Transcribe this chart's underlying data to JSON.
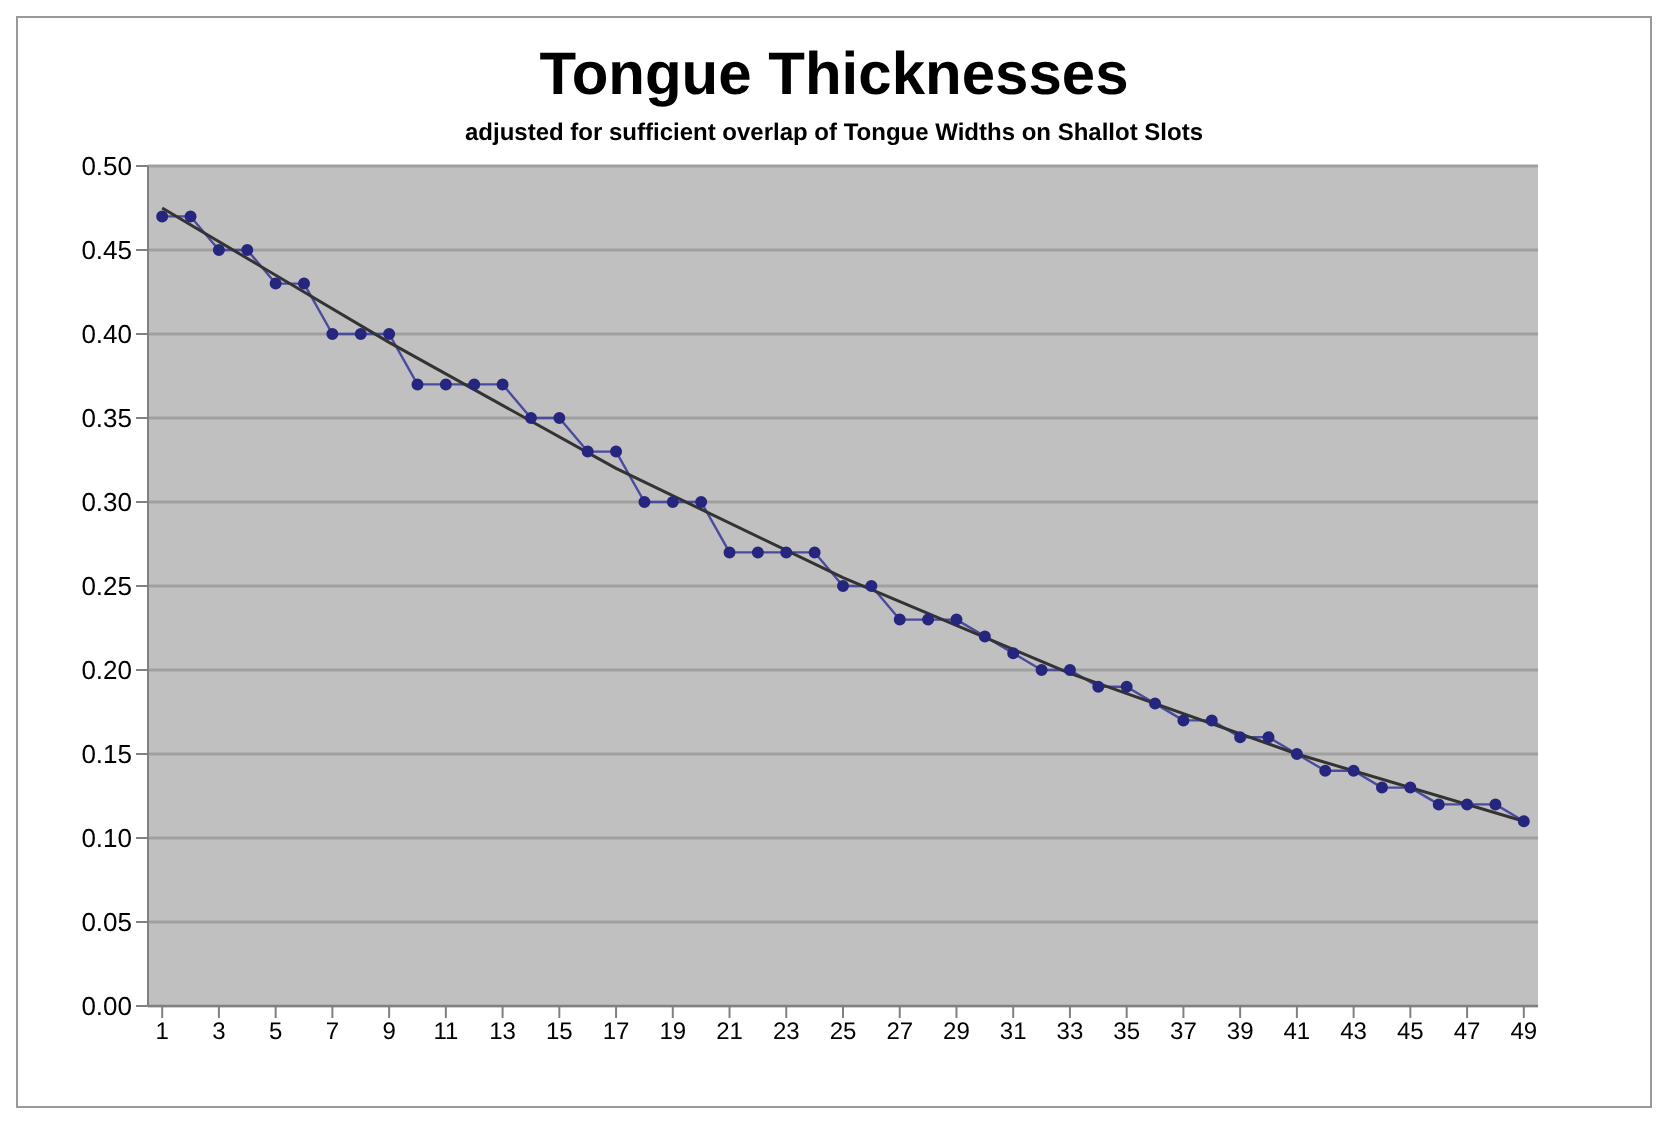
{
  "chart_data": {
    "type": "line",
    "title": "Tongue Thicknesses",
    "subtitle": "adjusted for sufficient overlap of Tongue Widths on Shallot Slots",
    "x": [
      1,
      2,
      3,
      4,
      5,
      6,
      7,
      8,
      9,
      10,
      11,
      12,
      13,
      14,
      15,
      16,
      17,
      18,
      19,
      20,
      21,
      22,
      23,
      24,
      25,
      26,
      27,
      28,
      29,
      30,
      31,
      32,
      33,
      34,
      35,
      36,
      37,
      38,
      39,
      40,
      41,
      42,
      43,
      44,
      45,
      46,
      47,
      48,
      49
    ],
    "series": [
      {
        "color": "#26267f",
        "marker": "circle",
        "values": [
          0.47,
          0.47,
          0.45,
          0.45,
          0.43,
          0.43,
          0.4,
          0.4,
          0.4,
          0.37,
          0.37,
          0.37,
          0.37,
          0.35,
          0.35,
          0.33,
          0.33,
          0.3,
          0.3,
          0.3,
          0.27,
          0.27,
          0.27,
          0.27,
          0.25,
          0.25,
          0.23,
          0.23,
          0.23,
          0.22,
          0.21,
          0.2,
          0.2,
          0.19,
          0.19,
          0.18,
          0.17,
          0.17,
          0.16,
          0.16,
          0.15,
          0.14,
          0.14,
          0.13,
          0.13,
          0.12,
          0.12,
          0.12,
          0.11
        ]
      },
      {
        "type": "line",
        "color": "#333333",
        "marker": "none",
        "x": [
          1,
          9,
          17,
          25,
          33,
          41,
          49
        ],
        "values": [
          0.475,
          0.395,
          0.32,
          0.255,
          0.198,
          0.15,
          0.11
        ]
      }
    ],
    "xlim": [
      0.5,
      49.5
    ],
    "xticks": [
      1,
      3,
      5,
      7,
      9,
      11,
      13,
      15,
      17,
      19,
      21,
      23,
      25,
      27,
      29,
      31,
      33,
      35,
      37,
      39,
      41,
      43,
      45,
      47,
      49
    ],
    "ylim": [
      0,
      0.5
    ],
    "yticks": [
      {
        "value": 0,
        "label": "0.00"
      },
      {
        "value": 0.05,
        "label": "0.05"
      },
      {
        "value": 0.1,
        "label": "0.10"
      },
      {
        "value": 0.15,
        "label": "0.15"
      },
      {
        "value": 0.2,
        "label": "0.20"
      },
      {
        "value": 0.25,
        "label": "0.25"
      },
      {
        "value": 0.3,
        "label": "0.30"
      },
      {
        "value": 0.35,
        "label": "0.35"
      },
      {
        "value": 0.4,
        "label": "0.40"
      },
      {
        "value": 0.45,
        "label": "0.45"
      },
      {
        "value": 0.5,
        "label": "0.50"
      }
    ],
    "grid": "y"
  }
}
